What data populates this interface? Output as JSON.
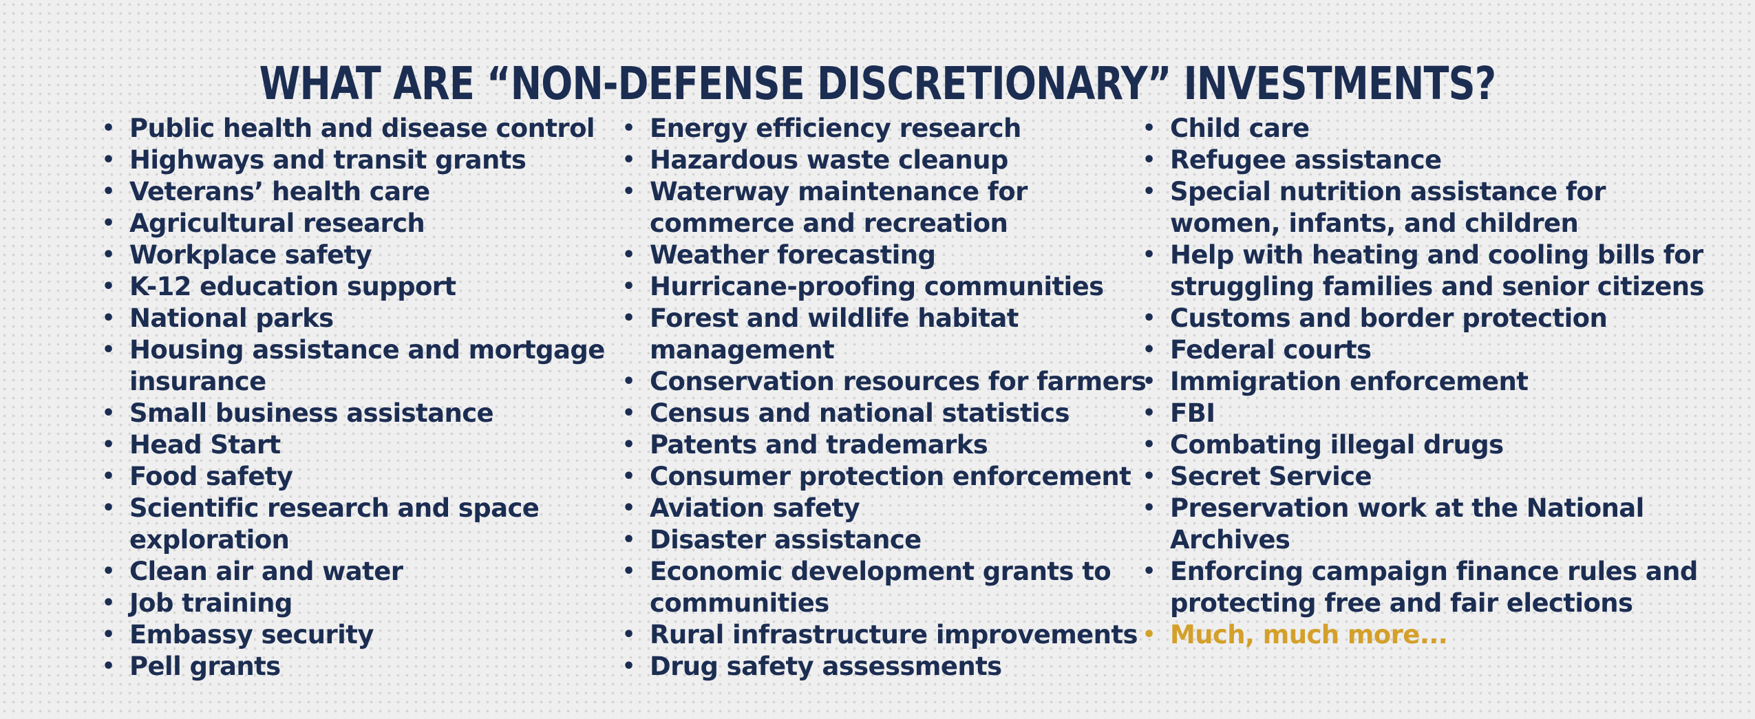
{
  "title": "WHAT ARE “NON-DEFENSE DISCRETIONARY” INVESTMENTS?",
  "bullet_glyph": "•",
  "colors": {
    "text": "#1c2d52",
    "highlight": "#d4a02a",
    "background": "#efefef"
  },
  "columns": [
    {
      "items": [
        [
          "Public health and disease control"
        ],
        [
          "Highways and transit grants"
        ],
        [
          "Veterans’ health care"
        ],
        [
          "Agricultural research"
        ],
        [
          "Workplace safety"
        ],
        [
          "K-12 education support"
        ],
        [
          "National parks"
        ],
        [
          "Housing assistance and mortgage",
          "insurance"
        ],
        [
          "Small business assistance"
        ],
        [
          "Head Start"
        ],
        [
          "Food safety"
        ],
        [
          "Scientific research and space",
          "exploration"
        ],
        [
          "Clean air and water"
        ],
        [
          "Job training"
        ],
        [
          "Embassy security"
        ],
        [
          "Pell grants"
        ]
      ]
    },
    {
      "items": [
        [
          "Energy efficiency research"
        ],
        [
          "Hazardous waste cleanup"
        ],
        [
          "Waterway maintenance for",
          "commerce and recreation"
        ],
        [
          "Weather forecasting"
        ],
        [
          "Hurricane-proofing communities"
        ],
        [
          "Forest and wildlife habitat",
          "management"
        ],
        [
          "Conservation resources for farmers"
        ],
        [
          "Census and national statistics"
        ],
        [
          "Patents and trademarks"
        ],
        [
          "Consumer protection enforcement"
        ],
        [
          "Aviation safety"
        ],
        [
          "Disaster assistance"
        ],
        [
          "Economic development grants to",
          "communities"
        ],
        [
          "Rural infrastructure improvements"
        ],
        [
          "Drug safety assessments"
        ]
      ]
    },
    {
      "items": [
        [
          "Child care"
        ],
        [
          "Refugee assistance"
        ],
        [
          "Special nutrition assistance for",
          "women, infants, and children"
        ],
        [
          "Help with heating and cooling bills for",
          "struggling families and senior citizens"
        ],
        [
          "Customs and border protection"
        ],
        [
          "Federal courts"
        ],
        [
          "Immigration enforcement"
        ],
        [
          "FBI"
        ],
        [
          "Combating illegal drugs"
        ],
        [
          "Secret Service"
        ],
        [
          "Preservation work at the National",
          "Archives"
        ],
        [
          "Enforcing campaign finance rules and",
          "protecting free and fair elections"
        ]
      ],
      "more": "Much, much more..."
    }
  ]
}
